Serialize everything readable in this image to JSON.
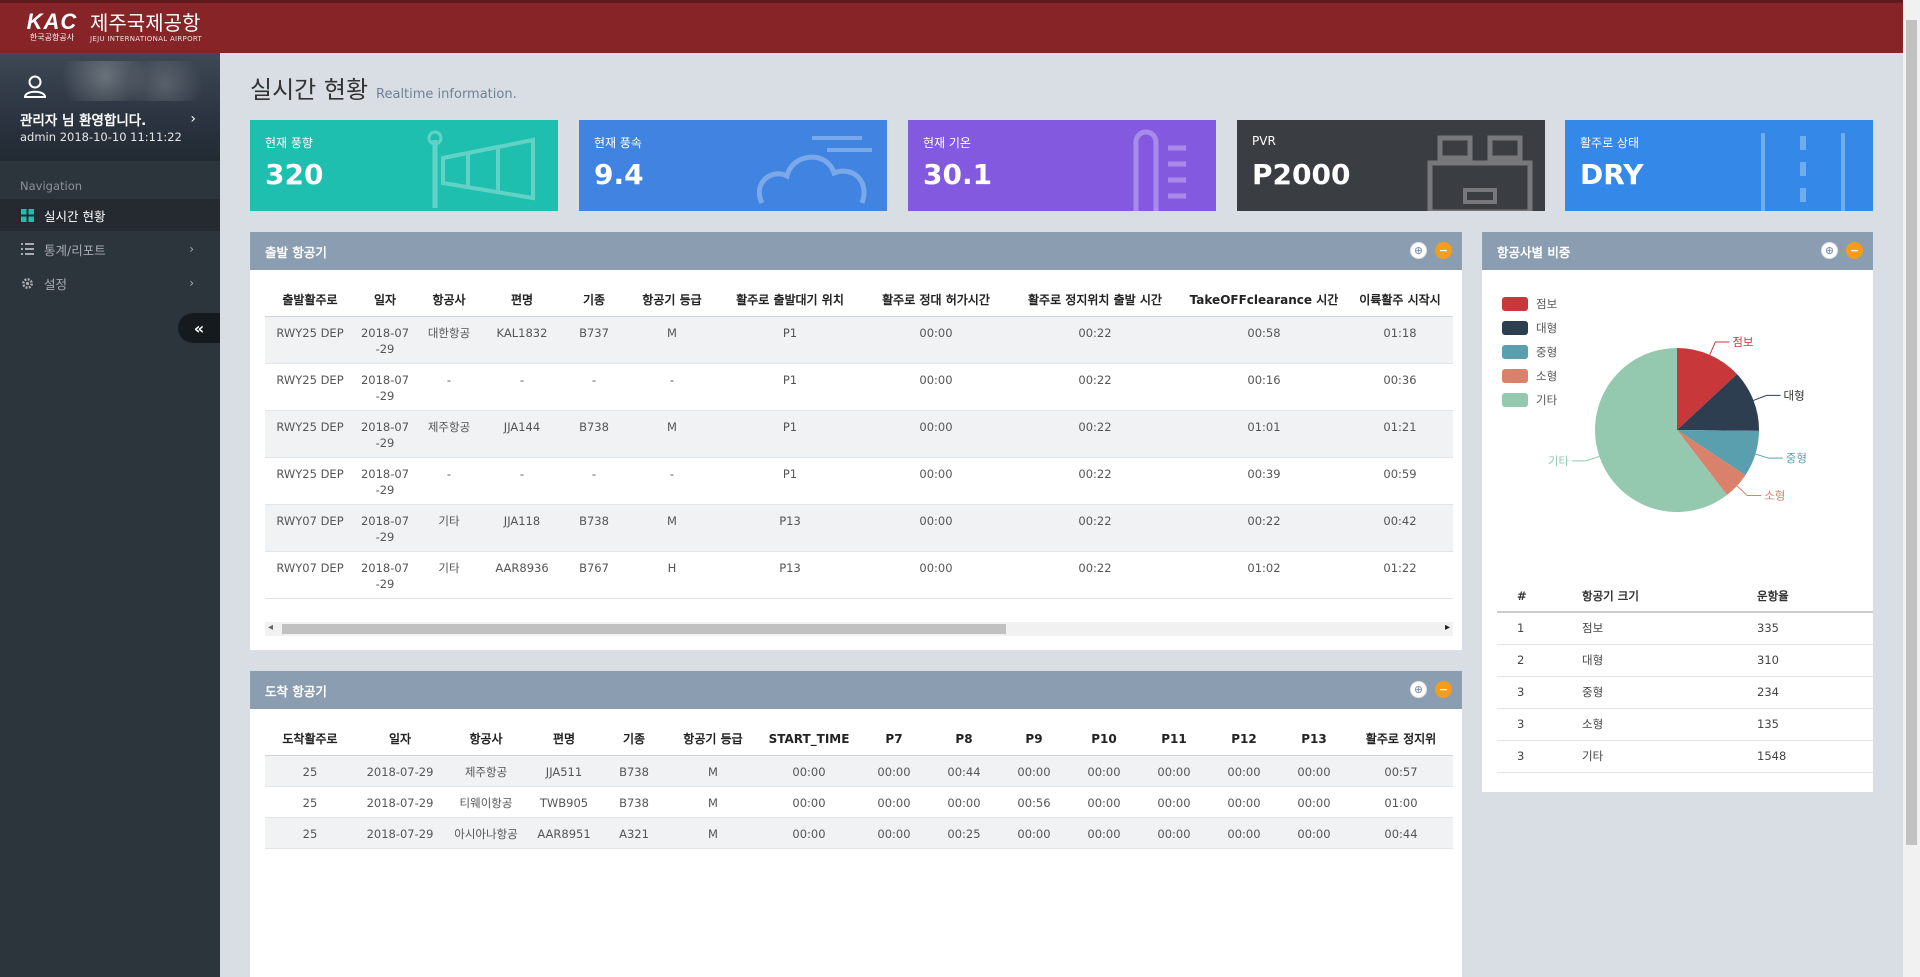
{
  "header": {
    "logo_kac": "KAC",
    "logo_kac_sub": "한국공항공사",
    "airport_name": "제주국제공항",
    "airport_name_en": "JEJU INTERNATIONAL AIRPORT"
  },
  "sidebar": {
    "welcome": "관리자 님 환영합니다.",
    "user_info": "admin 2018-10-10 11:11:22",
    "nav_header": "Navigation",
    "items": [
      {
        "label": "실시간 현황",
        "icon": "grid-icon"
      },
      {
        "label": "통계/리포트",
        "icon": "list-icon"
      },
      {
        "label": "설정",
        "icon": "gear-icon"
      }
    ]
  },
  "page": {
    "title": "실시간 현황",
    "subtitle": "Realtime information."
  },
  "stats": [
    {
      "label": "현재 풍향",
      "value": "320",
      "color": "#1ebfae"
    },
    {
      "label": "현재 풍속",
      "value": "9.4",
      "color": "#4183e0"
    },
    {
      "label": "현재 기온",
      "value": "30.1",
      "color": "#8359e0"
    },
    {
      "label": "PVR",
      "value": "P2000",
      "color": "#3a3d42"
    },
    {
      "label": "활주로 상태",
      "value": "DRY",
      "color": "#3388e8"
    }
  ],
  "departure": {
    "title": "출발 항공기",
    "columns": [
      "출발활주로",
      "일자",
      "항공사",
      "편명",
      "기종",
      "항공기 등급",
      "활주로 출발대기 위치",
      "활주로 정대 허가시간",
      "활주로 정지위치 출발 시간",
      "TakeOFFclearance 시간",
      "이륙활주 시작시"
    ],
    "rows": [
      [
        "RWY25 DEP",
        "2018-07-29",
        "대한항공",
        "KAL1832",
        "B737",
        "M",
        "P1",
        "00:00",
        "00:22",
        "00:58",
        "01:18"
      ],
      [
        "RWY25 DEP",
        "2018-07-29",
        "-",
        "-",
        "-",
        "-",
        "P1",
        "00:00",
        "00:22",
        "00:16",
        "00:36"
      ],
      [
        "RWY25 DEP",
        "2018-07-29",
        "제주항공",
        "JJA144",
        "B738",
        "M",
        "P1",
        "00:00",
        "00:22",
        "01:01",
        "01:21"
      ],
      [
        "RWY25 DEP",
        "2018-07-29",
        "-",
        "-",
        "-",
        "-",
        "P1",
        "00:00",
        "00:22",
        "00:39",
        "00:59"
      ],
      [
        "RWY07 DEP",
        "2018-07-29",
        "기타",
        "JJA118",
        "B738",
        "M",
        "P13",
        "00:00",
        "00:22",
        "00:22",
        "00:42"
      ],
      [
        "RWY07 DEP",
        "2018-07-29",
        "기타",
        "AAR8936",
        "B767",
        "H",
        "P13",
        "00:00",
        "00:22",
        "01:02",
        "01:22"
      ]
    ]
  },
  "arrival": {
    "title": "도착 항공기",
    "columns": [
      "도착활주로",
      "일자",
      "항공사",
      "편명",
      "기종",
      "항공기 등급",
      "START_TIME",
      "P7",
      "P8",
      "P9",
      "P10",
      "P11",
      "P12",
      "P13",
      "활주로 정지위"
    ],
    "rows": [
      [
        "25",
        "2018-07-29",
        "제주항공",
        "JJA511",
        "B738",
        "M",
        "00:00",
        "00:00",
        "00:44",
        "00:00",
        "00:00",
        "00:00",
        "00:00",
        "00:00",
        "00:57"
      ],
      [
        "25",
        "2018-07-29",
        "티웨이항공",
        "TWB905",
        "B738",
        "M",
        "00:00",
        "00:00",
        "00:00",
        "00:56",
        "00:00",
        "00:00",
        "00:00",
        "00:00",
        "01:00"
      ],
      [
        "25",
        "2018-07-29",
        "아시아나항공",
        "AAR8951",
        "A321",
        "M",
        "00:00",
        "00:00",
        "00:25",
        "00:00",
        "00:00",
        "00:00",
        "00:00",
        "00:00",
        "00:44"
      ]
    ]
  },
  "share": {
    "title": "항공사별 비중",
    "table_headers": [
      "#",
      "항공기 크기",
      "운항율"
    ],
    "table_rows": [
      [
        "1",
        "점보",
        "335"
      ],
      [
        "2",
        "대형",
        "310"
      ],
      [
        "3",
        "중형",
        "234"
      ],
      [
        "3",
        "소형",
        "135"
      ],
      [
        "3",
        "기타",
        "1548"
      ]
    ]
  },
  "chart_data": {
    "type": "pie",
    "categories": [
      "점보",
      "대형",
      "중형",
      "소형",
      "기타"
    ],
    "values": [
      335,
      310,
      234,
      135,
      1548
    ],
    "colors": [
      "#c8373a",
      "#2d3e50",
      "#5a9fae",
      "#d9816a",
      "#94c9b0"
    ],
    "legend": "top-left"
  }
}
